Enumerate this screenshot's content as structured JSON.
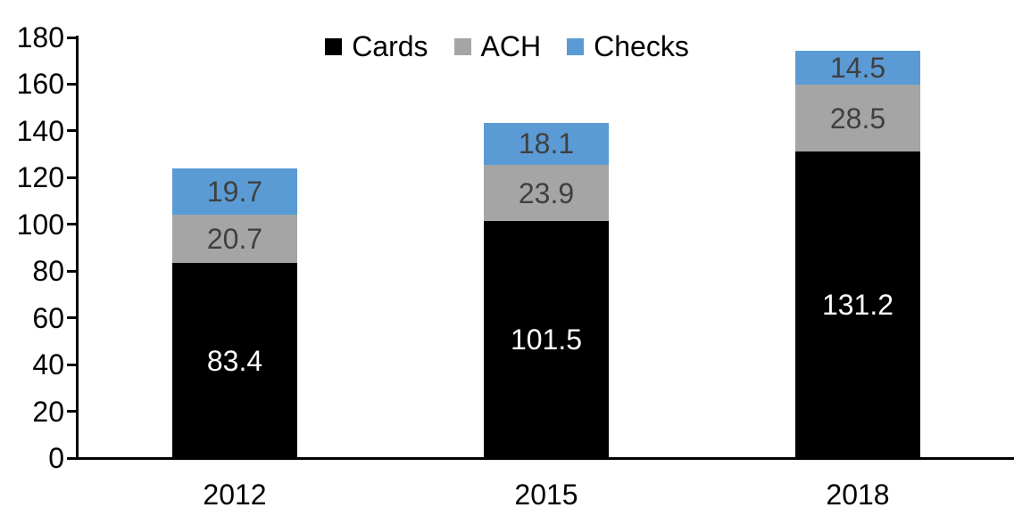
{
  "chart_data": {
    "type": "bar",
    "stacked": true,
    "title": "",
    "xlabel": "",
    "ylabel": "",
    "categories": [
      "2012",
      "2015",
      "2018"
    ],
    "series": [
      {
        "name": "Cards",
        "color": "#000000",
        "label_color": "#FFFFFF",
        "values": [
          83.4,
          101.5,
          131.2
        ]
      },
      {
        "name": "ACH",
        "color": "#A5A5A5",
        "label_color": "#404040",
        "values": [
          20.7,
          23.9,
          28.5
        ]
      },
      {
        "name": "Checks",
        "color": "#5B9BD5",
        "label_color": "#404040",
        "values": [
          19.7,
          18.1,
          14.5
        ]
      }
    ],
    "ylim": [
      0,
      180
    ],
    "ytick_step": 20,
    "grid": false,
    "legend_position": "top-center",
    "data_labels": true,
    "axis_color": "#000000",
    "background": "#FFFFFF"
  }
}
